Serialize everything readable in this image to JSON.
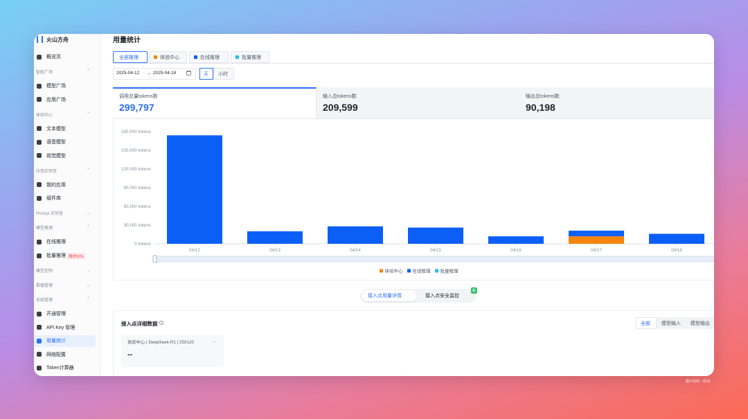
{
  "sidebar": {
    "brand": "火山方舟",
    "overview": "概览页",
    "groups": [
      {
        "title": "智能广场",
        "items": [
          {
            "label": "模型广场"
          },
          {
            "label": "应用广场"
          }
        ]
      },
      {
        "title": "体验中心",
        "items": [
          {
            "label": "文本模型"
          },
          {
            "label": "语音模型"
          },
          {
            "label": "视觉模型"
          }
        ]
      },
      {
        "title": "应用实验室",
        "items": [
          {
            "label": "我的应用"
          },
          {
            "label": "组件库"
          }
        ]
      },
      {
        "title": "Prompt 实验室",
        "items": []
      },
      {
        "title": "模型推理",
        "items": [
          {
            "label": "在线推理"
          },
          {
            "label": "批量推理",
            "badge": "限时50%"
          }
        ]
      },
      {
        "title": "模型定制",
        "items": []
      },
      {
        "title": "数据管理",
        "items": []
      },
      {
        "title": "系统管理",
        "items": [
          {
            "label": "开通管理"
          },
          {
            "label": "API Key 管理"
          },
          {
            "label": "用量统计"
          },
          {
            "label": "网络配置"
          },
          {
            "label": "Token计算器"
          }
        ]
      }
    ]
  },
  "header": {
    "title": "用量统计",
    "tabs": [
      "全部推理",
      "体验中心",
      "在线推理",
      "批量推理"
    ]
  },
  "filters": {
    "start_date": "2025-04-12",
    "end_date": "2025-04-18",
    "granularity": [
      "天",
      "小时"
    ]
  },
  "summary": [
    {
      "label": "调用总量tokens数",
      "value": "299,797"
    },
    {
      "label": "输入总tokens数",
      "value": "209,599"
    },
    {
      "label": "输出总tokens数",
      "value": "90,198"
    }
  ],
  "chart_data": {
    "type": "bar",
    "stacked": true,
    "grid": false,
    "legend": "bottom",
    "categories": [
      "04/12",
      "04/13",
      "04/14",
      "04/15",
      "04/16",
      "04/17",
      "04/18"
    ],
    "series": [
      {
        "name": "体验中心",
        "color": "#f5850e",
        "values": [
          0,
          0,
          0,
          0,
          0,
          12000,
          0
        ]
      },
      {
        "name": "在线推理",
        "color": "#0c5ff6",
        "values": [
          174000,
          20000,
          28000,
          26000,
          12000,
          9000,
          16000
        ]
      },
      {
        "name": "批量推理",
        "color": "#1cc3e8",
        "values": [
          0,
          0,
          0,
          0,
          0,
          0,
          0
        ]
      }
    ],
    "ylim": [
      0,
      180000
    ],
    "yticks": [
      {
        "value": 0,
        "label": "0 tokens"
      },
      {
        "value": 30000,
        "label": "30,000 tokens"
      },
      {
        "value": 60000,
        "label": "60,000 tokens"
      },
      {
        "value": 90000,
        "label": "90,000 tokens"
      },
      {
        "value": 120000,
        "label": "120,000 tokens"
      },
      {
        "value": 150000,
        "label": "150,000 tokens"
      },
      {
        "value": 180000,
        "label": "180,000 tokens"
      }
    ]
  },
  "switch": {
    "options": [
      "接入点用量详情",
      "接入点安全监控"
    ],
    "badge": "新"
  },
  "detail": {
    "title": "接入点详细数据",
    "filters": [
      "全部",
      "模型输入",
      "模型输出"
    ],
    "endpoint": "体验中心 | DeepSeek-R1 | 250120",
    "value": "--"
  },
  "watermark": "图片版权：原创"
}
